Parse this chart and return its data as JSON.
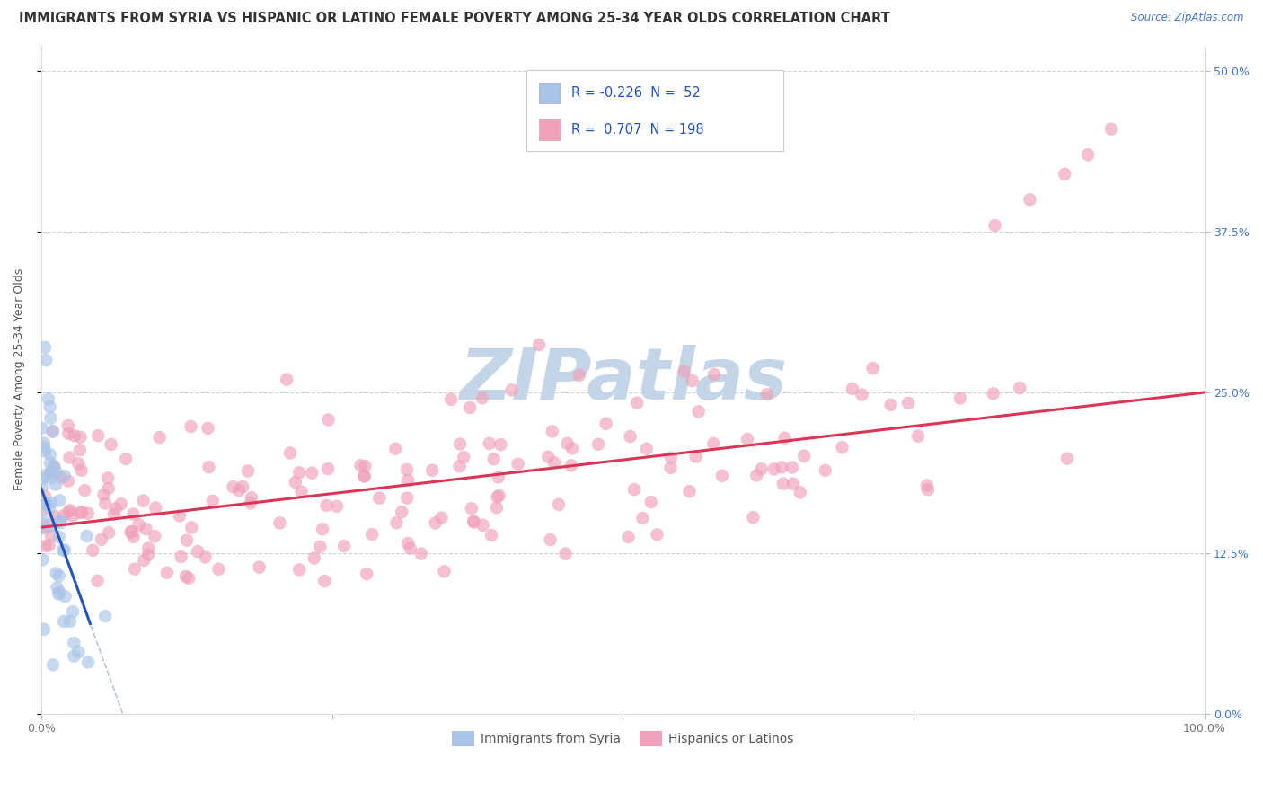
{
  "title": "IMMIGRANTS FROM SYRIA VS HISPANIC OR LATINO FEMALE POVERTY AMONG 25-34 YEAR OLDS CORRELATION CHART",
  "source": "Source: ZipAtlas.com",
  "ylabel": "Female Poverty Among 25-34 Year Olds",
  "xlim": [
    0.0,
    1.0
  ],
  "ylim": [
    0.0,
    0.52
  ],
  "yticks": [
    0.0,
    0.125,
    0.25,
    0.375,
    0.5
  ],
  "ytick_labels": [
    "0.0%",
    "12.5%",
    "25.0%",
    "37.5%",
    "50.0%"
  ],
  "xticks": [
    0.0,
    0.25,
    0.5,
    0.75,
    1.0
  ],
  "xtick_labels": [
    "0.0%",
    "",
    "",
    "",
    "100.0%"
  ],
  "legend_R1": "-0.226",
  "legend_N1": "52",
  "legend_R2": "0.707",
  "legend_N2": "198",
  "scatter1_color": "#a8c4e8",
  "scatter2_color": "#f0a0b8",
  "line1_color": "#2255bb",
  "line2_color": "#dd3355",
  "line1_dash_color": "#99aacc",
  "title_color": "#333333",
  "source_color": "#4477cc",
  "right_tick_color": "#4477cc",
  "legend_text_color": "#2255bb",
  "background_color": "#ffffff",
  "grid_color": "#cccccc",
  "title_fontsize": 10.5,
  "axis_label_fontsize": 9,
  "tick_fontsize": 9,
  "watermark_color": "#c5d5e8",
  "bottom_legend_color": "#555555"
}
